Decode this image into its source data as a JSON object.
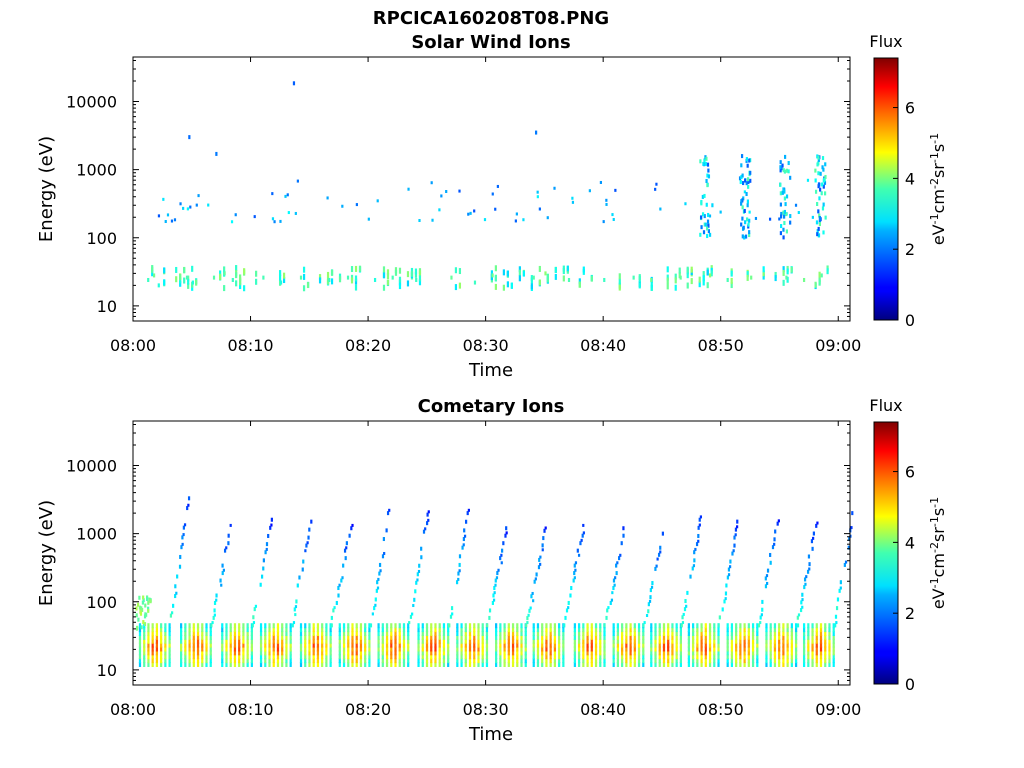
{
  "figure": {
    "filename": "RPCICA160208T08.PNG"
  },
  "chart_data": [
    {
      "type": "heatmap",
      "title": "Solar Wind Ions",
      "xlabel": "Time",
      "ylabel": "Energy (eV)",
      "xlim": [
        "08:00",
        "09:00"
      ],
      "x_ticks": [
        "08:00",
        "08:10",
        "08:20",
        "08:30",
        "08:40",
        "08:50",
        "09:00"
      ],
      "y_scale": "log",
      "ylim": [
        6,
        45000
      ],
      "y_ticks": [
        10,
        100,
        1000,
        10000
      ],
      "y_tick_labels": [
        "10",
        "100",
        "1000",
        "10000"
      ],
      "colorbar": {
        "label": "Flux",
        "unit_label": "eV-1cm-2sr-1s-1",
        "range": [
          0,
          7.4
        ],
        "ticks": [
          "0",
          "2",
          "4",
          "6"
        ],
        "colormap": "jet"
      },
      "cells": [
        {
          "t": 1.2,
          "e": 24,
          "v": 3.2
        },
        {
          "t": 1.7,
          "e": 28,
          "v": 3.6
        },
        {
          "t": 2.1,
          "e": 20,
          "v": 3.0
        },
        {
          "t": 4.5,
          "e": 26,
          "v": 3.3
        },
        {
          "t": 5.0,
          "e": 22,
          "v": 3.0
        },
        {
          "t": 6.8,
          "e": 26,
          "v": 3.4
        },
        {
          "t": 7.7,
          "e": 30,
          "v": 3.5
        },
        {
          "t": 8.4,
          "e": 24,
          "v": 3.2
        },
        {
          "t": 11.0,
          "e": 26,
          "v": 3.3
        },
        {
          "t": 12.5,
          "e": 22,
          "v": 3.0
        },
        {
          "t": 14.2,
          "e": 26,
          "v": 3.4
        },
        {
          "t": 16.6,
          "e": 24,
          "v": 3.2
        },
        {
          "t": 18.2,
          "e": 26,
          "v": 3.3
        },
        {
          "t": 20.5,
          "e": 24,
          "v": 3.0
        },
        {
          "t": 22.0,
          "e": 26,
          "v": 3.3
        },
        {
          "t": 24.0,
          "e": 24,
          "v": 3.2
        },
        {
          "t": 27.0,
          "e": 26,
          "v": 3.5
        },
        {
          "t": 29.0,
          "e": 22,
          "v": 3.2
        },
        {
          "t": 30.5,
          "e": 28,
          "v": 3.6
        },
        {
          "t": 34.0,
          "e": 26,
          "v": 3.4
        },
        {
          "t": 35.0,
          "e": 30,
          "v": 3.8
        },
        {
          "t": 37.0,
          "e": 24,
          "v": 3.3
        },
        {
          "t": 40.0,
          "e": 24,
          "v": 3.2
        },
        {
          "t": 42.5,
          "e": 26,
          "v": 3.3
        },
        {
          "t": 44.0,
          "e": 24,
          "v": 3.6
        },
        {
          "t": 46.5,
          "e": 26,
          "v": 3.5
        },
        {
          "t": 49.0,
          "e": 28,
          "v": 3.8
        },
        {
          "t": 50.5,
          "e": 24,
          "v": 3.3
        },
        {
          "t": 52.5,
          "e": 26,
          "v": 3.6
        },
        {
          "t": 55.5,
          "e": 26,
          "v": 3.4
        },
        {
          "t": 57.0,
          "e": 24,
          "v": 3.6
        },
        {
          "t": 58.5,
          "e": 28,
          "v": 3.4
        },
        {
          "t": 48.5,
          "e": 1200,
          "v": 2.0
        },
        {
          "t": 48.8,
          "e": 600,
          "v": 2.6
        },
        {
          "t": 49.2,
          "e": 300,
          "v": 2.5
        },
        {
          "t": 52.0,
          "e": 700,
          "v": 2.4
        },
        {
          "t": 52.2,
          "e": 300,
          "v": 2.2
        },
        {
          "t": 55.3,
          "e": 500,
          "v": 2.2
        },
        {
          "t": 58.3,
          "e": 600,
          "v": 2.3
        },
        {
          "t": 58.5,
          "e": 450,
          "v": 3.2
        },
        {
          "t": 13.6,
          "e": 18500,
          "v": 1.6
        },
        {
          "t": 4.7,
          "e": 3000,
          "v": 1.7
        },
        {
          "t": 7.0,
          "e": 1700,
          "v": 1.8
        },
        {
          "t": 34.2,
          "e": 3500,
          "v": 1.8
        }
      ]
    },
    {
      "type": "heatmap",
      "title": "Cometary Ions",
      "xlabel": "Time",
      "ylabel": "Energy (eV)",
      "xlim": [
        "08:00",
        "09:00"
      ],
      "x_ticks": [
        "08:00",
        "08:10",
        "08:20",
        "08:30",
        "08:40",
        "08:50",
        "09:00"
      ],
      "y_scale": "log",
      "ylim": [
        6,
        45000
      ],
      "y_ticks": [
        10,
        100,
        1000,
        10000
      ],
      "y_tick_labels": [
        "10",
        "100",
        "1000",
        "10000"
      ],
      "colorbar": {
        "label": "Flux",
        "unit_label": "eV-1cm-2sr-1s-1",
        "range": [
          0,
          7.4
        ],
        "ticks": [
          "0",
          "2",
          "4",
          "6"
        ],
        "colormap": "jet"
      },
      "burst_times": [
        0.5,
        4.0,
        7.5,
        10.8,
        14.2,
        17.5,
        20.8,
        24.2,
        27.5,
        30.8,
        34.0,
        37.5,
        40.8,
        44.0,
        47.2,
        50.5,
        53.8,
        57.0
      ],
      "burst_peak_energy_eV": 22,
      "burst_peak_flux": 6.2,
      "dispersion_peak_energy_eV": [
        3300,
        1200,
        1600,
        1500,
        1200,
        2000,
        1900,
        2000,
        1200,
        1100,
        1200,
        1200,
        1000,
        1600,
        1500,
        1400,
        1300,
        2000
      ]
    }
  ]
}
